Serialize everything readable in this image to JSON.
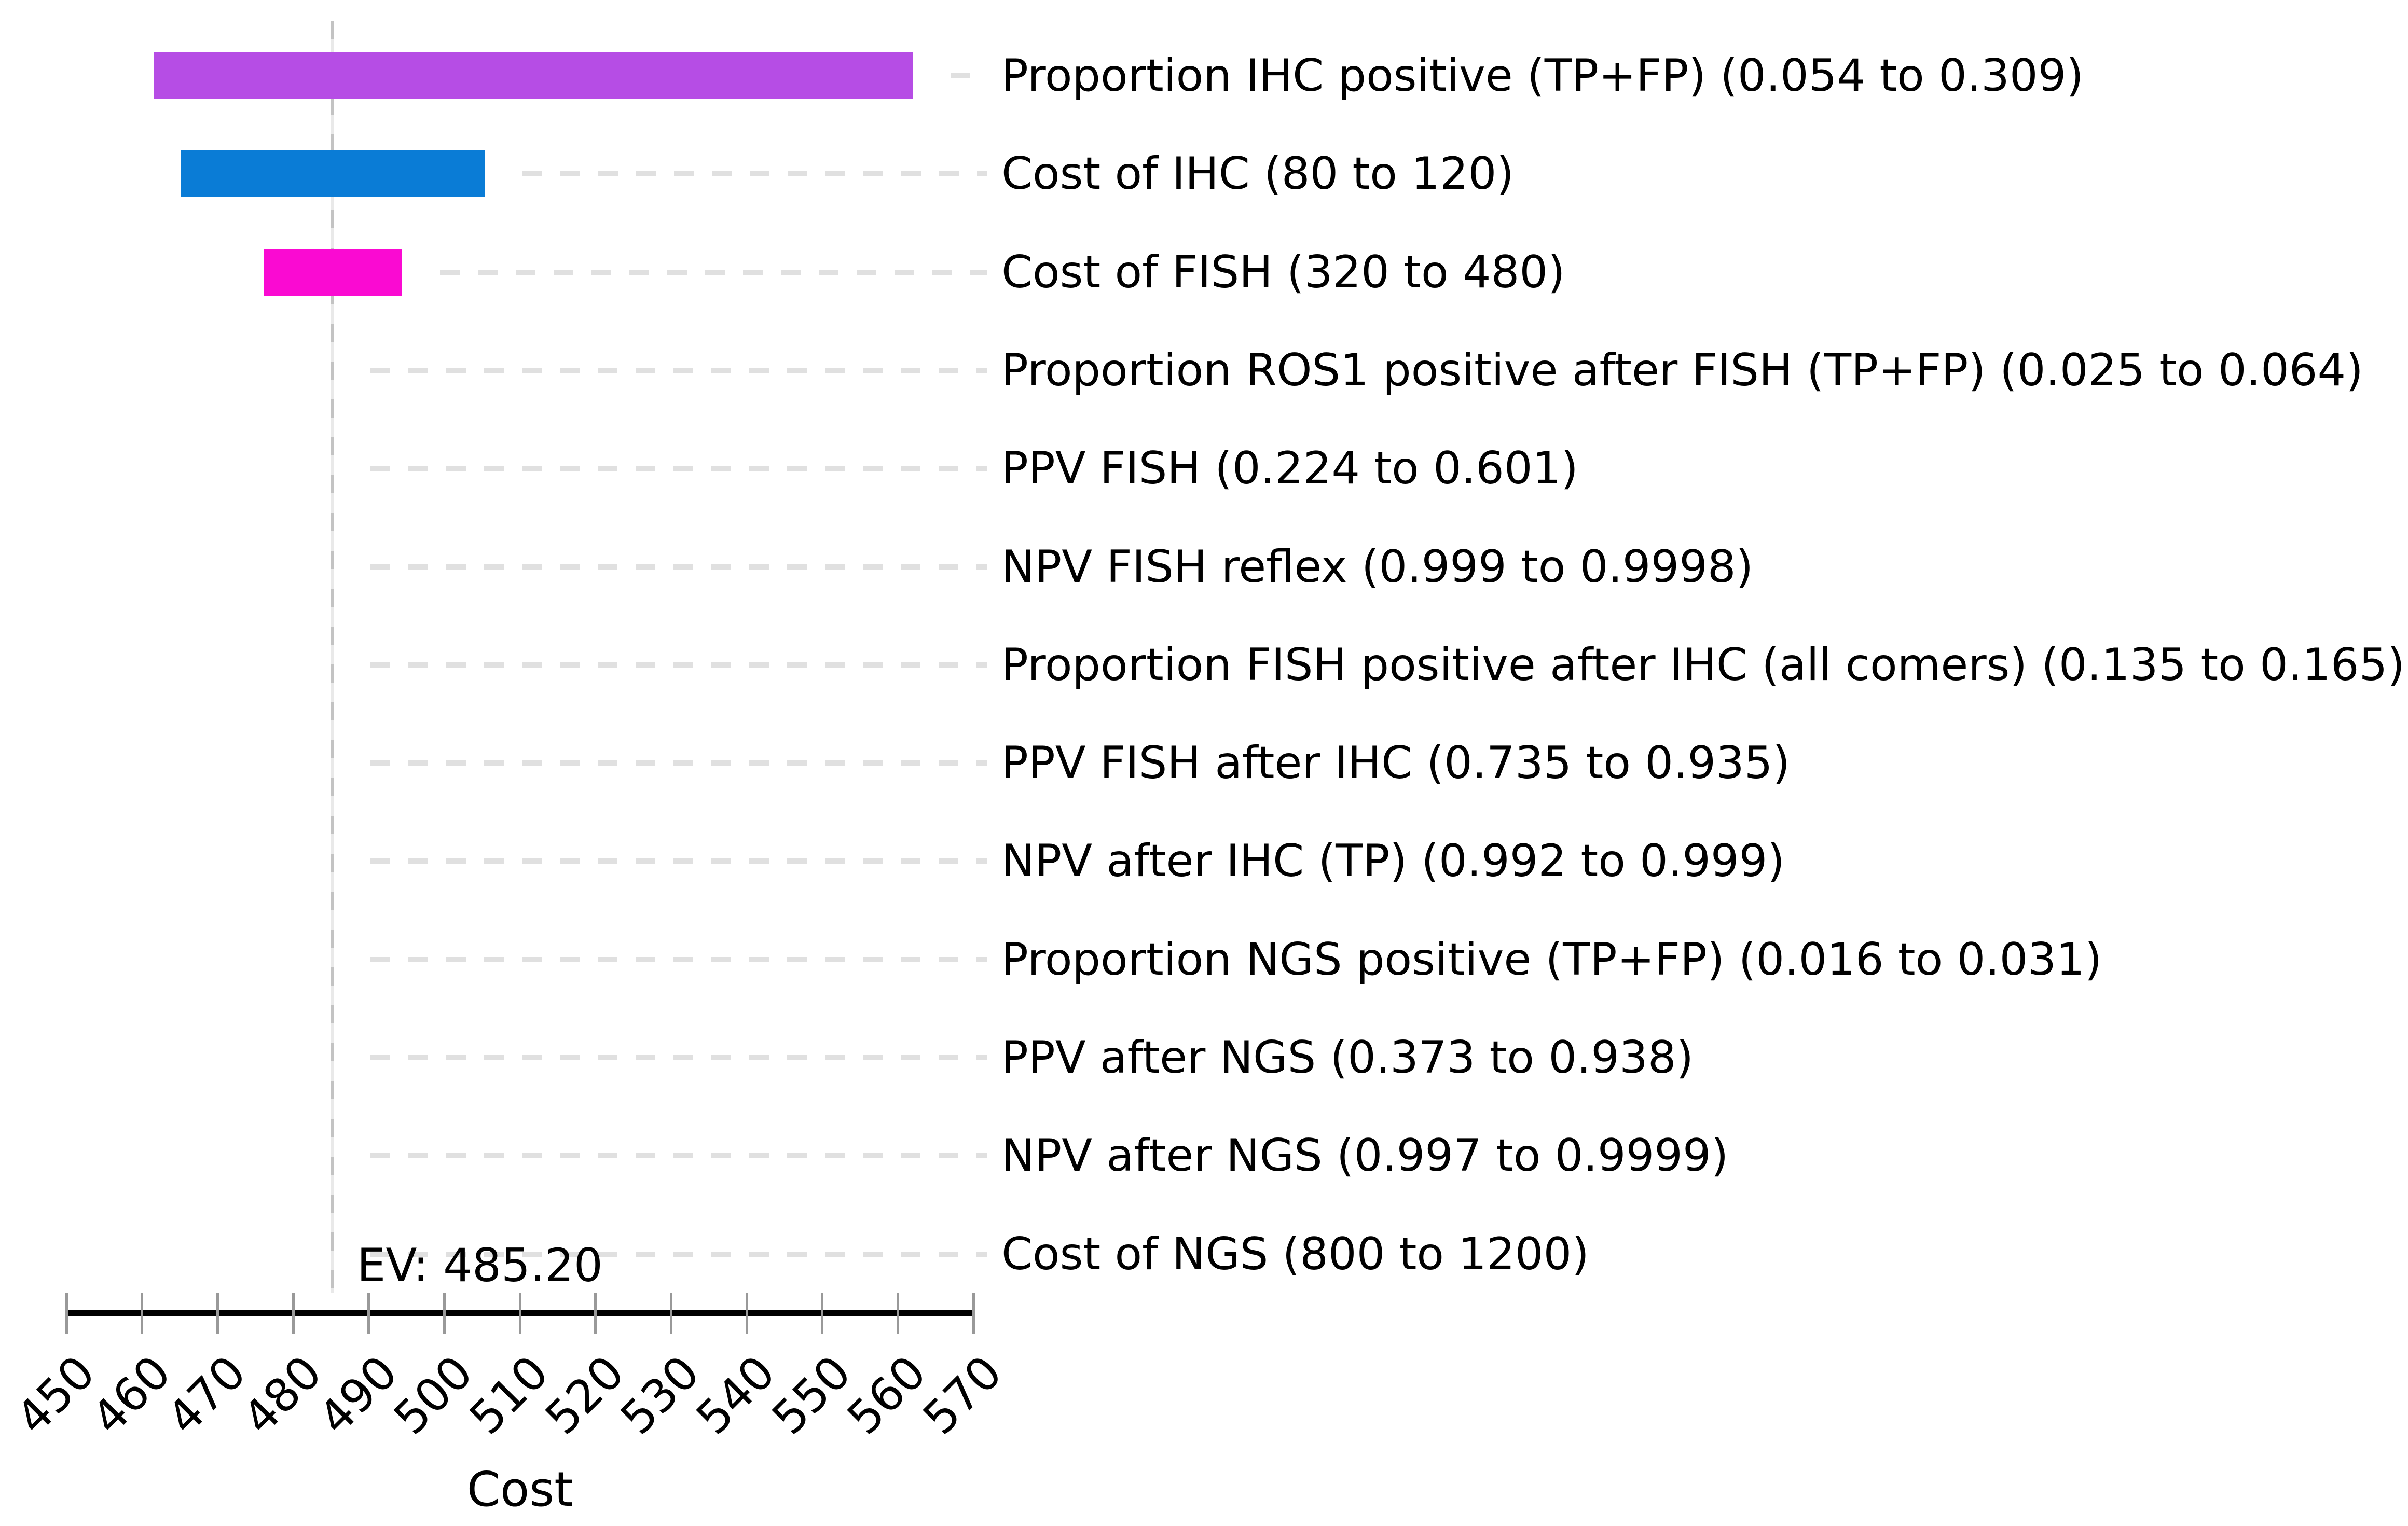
{
  "chart_data": {
    "type": "bar",
    "variant": "tornado-sensitivity",
    "title": "",
    "xlabel": "Cost",
    "ylabel": "",
    "xlim": [
      450,
      570
    ],
    "x_ticks": [
      450,
      460,
      470,
      480,
      490,
      500,
      510,
      520,
      530,
      540,
      550,
      560,
      570
    ],
    "ev": 485.2,
    "ev_label": "EV: 485.20",
    "grid": false,
    "legend": "none",
    "colors": {
      "bar_purple": "#b64de5",
      "bar_blue": "#0a7cd6",
      "bar_magenta": "#fa0ad2",
      "leader_gray": "#e0e0e0",
      "ev_line_gray": "#c3c3c3"
    },
    "rows": [
      {
        "label": "Proportion IHC positive (TP+FP) (0.054 to 0.309)",
        "low": 461.5,
        "high": 562.0,
        "color": "#b64de5"
      },
      {
        "label": "Cost of IHC (80 to 120)",
        "low": 465.1,
        "high": 505.3,
        "color": "#0a7cd6"
      },
      {
        "label": "Cost of FISH (320 to 480)",
        "low": 476.1,
        "high": 494.4,
        "color": "#fa0ad2"
      },
      {
        "label": "Proportion ROS1 positive after FISH (TP+FP) (0.025 to 0.064)",
        "low": 485.2,
        "high": 485.2,
        "color": null
      },
      {
        "label": "PPV FISH (0.224 to 0.601)",
        "low": 485.2,
        "high": 485.2,
        "color": null
      },
      {
        "label": "NPV FISH reflex (0.999 to 0.9998)",
        "low": 485.2,
        "high": 485.2,
        "color": null
      },
      {
        "label": "Proportion FISH positive after IHC (all comers) (0.135 to 0.165)",
        "low": 485.2,
        "high": 485.2,
        "color": null
      },
      {
        "label": "PPV FISH after IHC (0.735 to 0.935)",
        "low": 485.2,
        "high": 485.2,
        "color": null
      },
      {
        "label": "NPV after IHC (TP) (0.992 to 0.999)",
        "low": 485.2,
        "high": 485.2,
        "color": null
      },
      {
        "label": "Proportion NGS positive (TP+FP) (0.016 to 0.031)",
        "low": 485.2,
        "high": 485.2,
        "color": null
      },
      {
        "label": "PPV after NGS (0.373 to 0.938)",
        "low": 485.2,
        "high": 485.2,
        "color": null
      },
      {
        "label": "NPV after NGS (0.997 to 0.9999)",
        "low": 485.2,
        "high": 485.2,
        "color": null
      },
      {
        "label": "Cost of NGS (800 to 1200)",
        "low": 485.2,
        "high": 485.2,
        "color": null
      }
    ]
  }
}
